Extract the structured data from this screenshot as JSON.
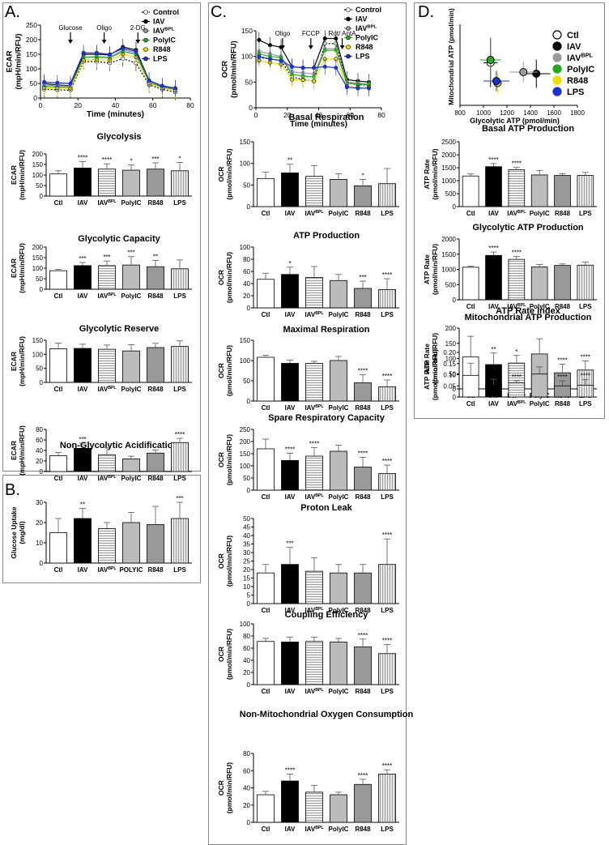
{
  "panels": {
    "A": "A.",
    "B": "B.",
    "C": "C.",
    "D": "D."
  },
  "chart_data": [
    {
      "id": "A-ts",
      "type": "line",
      "ylabel": "ECAR (mpH/min/RFU)",
      "xlabel": "Time (minutes)",
      "xlim": [
        0,
        80
      ],
      "ylim": [
        0,
        250
      ],
      "xticks": [
        0,
        20,
        40,
        60,
        80
      ],
      "yticks": [
        0,
        50,
        100,
        150,
        200,
        250
      ],
      "injections": [
        {
          "label": "Glucose",
          "x": 16
        },
        {
          "label": "Oligo",
          "x": 34
        },
        {
          "label": "2-DG",
          "x": 52
        }
      ],
      "x": [
        2,
        9,
        16,
        23,
        30,
        37,
        44,
        51,
        58,
        65,
        72
      ],
      "series": [
        {
          "name": "Control",
          "color": "#ffffff",
          "values": [
            30,
            28,
            27,
            125,
            125,
            120,
            135,
            120,
            45,
            30,
            20
          ]
        },
        {
          "name": "IAV",
          "color": "#000000",
          "values": [
            50,
            45,
            42,
            150,
            150,
            148,
            175,
            165,
            60,
            40,
            32
          ]
        },
        {
          "name": "IAV^BPL",
          "color": "#999999",
          "values": [
            45,
            42,
            40,
            140,
            142,
            140,
            165,
            155,
            55,
            38,
            30
          ]
        },
        {
          "name": "PolyIC",
          "color": "#22aa22",
          "values": [
            40,
            38,
            36,
            140,
            140,
            138,
            160,
            150,
            52,
            36,
            28
          ]
        },
        {
          "name": "R848",
          "color": "#eedd00",
          "values": [
            35,
            34,
            33,
            130,
            132,
            130,
            150,
            140,
            50,
            34,
            26
          ]
        },
        {
          "name": "LPS",
          "color": "#1a2fd4",
          "values": [
            55,
            52,
            50,
            155,
            155,
            150,
            170,
            160,
            60,
            42,
            34
          ]
        }
      ]
    },
    {
      "id": "A-gly",
      "type": "bar",
      "title": "Glycolysis",
      "ylabel": "ECAR (mpH/min/RFU)",
      "ylim": [
        0,
        200
      ],
      "yticks": [
        0,
        50,
        100,
        150,
        200
      ],
      "categories": [
        "Ctl",
        "IAV",
        "IAV^BPL",
        "PolyIC",
        "R848",
        "LPS"
      ],
      "values": [
        105,
        133,
        128,
        123,
        128,
        120
      ],
      "errors": [
        15,
        30,
        25,
        25,
        30,
        40
      ],
      "sig": [
        "",
        "****",
        "****",
        "*",
        "***",
        "*"
      ]
    },
    {
      "id": "A-gcap",
      "type": "bar",
      "title": "Glycolytic Capacity",
      "ylabel": "ECAR (mpH/min/RFU)",
      "ylim": [
        0,
        200
      ],
      "yticks": [
        0,
        50,
        100,
        150,
        200
      ],
      "categories": [
        "Ctl",
        "IAV",
        "IAV^BPL",
        "PolyIC",
        "R848",
        "LPS"
      ],
      "values": [
        88,
        112,
        112,
        115,
        107,
        97
      ],
      "errors": [
        6,
        15,
        22,
        40,
        30,
        42
      ],
      "sig": [
        "",
        "***",
        "***",
        "***",
        "**",
        ""
      ]
    },
    {
      "id": "A-gres",
      "type": "bar",
      "title": "Glycolytic Reserve",
      "ylabel": "ECAR (mpH/min/RFU)",
      "ylim": [
        0,
        150
      ],
      "yticks": [
        0,
        50,
        100,
        150
      ],
      "categories": [
        "Ctl",
        "IAV",
        "IAV^BPL",
        "PolyIC",
        "R848",
        "LPS"
      ],
      "values": [
        120,
        121,
        118,
        112,
        124,
        128
      ],
      "errors": [
        20,
        15,
        15,
        22,
        15,
        20
      ],
      "sig": [
        "",
        "",
        "",
        "",
        "",
        ""
      ]
    },
    {
      "id": "A-nga",
      "type": "bar",
      "title": "Non-Glycolytic Acidification",
      "ylabel": "ECAR (mpH/min/RFU)",
      "ylim": [
        0,
        80
      ],
      "yticks": [
        0,
        20,
        40,
        60,
        80
      ],
      "categories": [
        "Ctl",
        "IAV",
        "IAV^BPL",
        "PolyIC",
        "R848",
        "LPS"
      ],
      "values": [
        30,
        44,
        32,
        24,
        35,
        55
      ],
      "errors": [
        6,
        10,
        13,
        5,
        6,
        8
      ],
      "sig": [
        "",
        "***",
        "",
        "",
        "",
        "****"
      ]
    },
    {
      "id": "B-glu",
      "type": "bar",
      "title": "",
      "ylabel": "Glucose Uptake (mg/dl)",
      "ylim": [
        0,
        30
      ],
      "yticks": [
        0,
        10,
        20,
        30
      ],
      "categories": [
        "Ctl",
        "IAV",
        "IAV^BPL",
        "POLYIC",
        "R848",
        "LPS"
      ],
      "values": [
        15,
        22,
        17,
        20,
        19,
        22
      ],
      "errors": [
        7,
        5,
        3,
        5,
        9,
        8
      ],
      "sig": [
        "",
        "**",
        "",
        "",
        "",
        "***"
      ]
    },
    {
      "id": "C-ts",
      "type": "line",
      "ylabel": "OCR (pmol/min/RFU)",
      "xlabel": "Time (minutes)",
      "xlim": [
        0,
        80
      ],
      "ylim": [
        0,
        150
      ],
      "xticks": [
        0,
        20,
        40,
        60,
        80
      ],
      "yticks": [
        0,
        50,
        100,
        150
      ],
      "injections": [
        {
          "label": "Oligo",
          "x": 17
        },
        {
          "label": "FCCP",
          "x": 35
        },
        {
          "label": "Rot/ AntA",
          "x": 55
        }
      ],
      "x": [
        2,
        9,
        16,
        23,
        30,
        37,
        44,
        51,
        58,
        65,
        72
      ],
      "series": [
        {
          "name": "Control",
          "color": "#ffffff",
          "values": [
            98,
            95,
            92,
            60,
            55,
            52,
            125,
            125,
            48,
            45,
            44
          ]
        },
        {
          "name": "IAV",
          "color": "#000000",
          "values": [
            132,
            122,
            118,
            80,
            78,
            78,
            135,
            135,
            55,
            52,
            50
          ]
        },
        {
          "name": "IAV^BPL",
          "color": "#999999",
          "values": [
            110,
            105,
            100,
            70,
            68,
            66,
            115,
            115,
            50,
            48,
            46
          ]
        },
        {
          "name": "PolyIC",
          "color": "#22aa22",
          "values": [
            105,
            100,
            98,
            65,
            62,
            60,
            112,
            112,
            48,
            46,
            45
          ]
        },
        {
          "name": "R848",
          "color": "#eedd00",
          "values": [
            92,
            88,
            85,
            55,
            54,
            52,
            95,
            95,
            42,
            40,
            40
          ]
        },
        {
          "name": "LPS",
          "color": "#1a2fd4",
          "values": [
            100,
            95,
            92,
            80,
            78,
            78,
            80,
            78,
            40,
            38,
            38
          ]
        }
      ]
    },
    {
      "id": "C-basal",
      "type": "bar",
      "title": "Basal Respiration",
      "ylabel": "OCR (pmol/min/RFU)",
      "ylim": [
        0,
        150
      ],
      "yticks": [
        0,
        50,
        100,
        150
      ],
      "categories": [
        "Ctl",
        "IAV",
        "IAV^BPL",
        "PolyIC",
        "R848",
        "LPS"
      ],
      "values": [
        65,
        78,
        70,
        63,
        48,
        53
      ],
      "errors": [
        15,
        20,
        25,
        13,
        15,
        35
      ],
      "sig": [
        "",
        "**",
        "",
        "",
        "*",
        ""
      ]
    },
    {
      "id": "C-atp",
      "type": "bar",
      "title": "ATP Production",
      "ylabel": "OCR (pmol/min/RFU)",
      "ylim": [
        0,
        100
      ],
      "yticks": [
        0,
        20,
        40,
        60,
        80,
        100
      ],
      "categories": [
        "Ctl",
        "IAV",
        "IAV^BPL",
        "PolyIC",
        "R848",
        "LPS"
      ],
      "values": [
        47,
        55,
        50,
        45,
        32,
        30
      ],
      "errors": [
        10,
        12,
        18,
        10,
        12,
        18
      ],
      "sig": [
        "",
        "*",
        "",
        "",
        "***",
        "****"
      ]
    },
    {
      "id": "C-max",
      "type": "bar",
      "title": "Maximal Respiration",
      "ylabel": "OCR (pmol/min/RFU)",
      "ylim": [
        0,
        150
      ],
      "yticks": [
        0,
        50,
        100,
        150
      ],
      "categories": [
        "Ctl",
        "IAV",
        "IAV^BPL",
        "PolyIC",
        "R848",
        "LPS"
      ],
      "values": [
        108,
        93,
        93,
        100,
        45,
        35
      ],
      "errors": [
        5,
        8,
        5,
        10,
        20,
        17
      ],
      "sig": [
        "",
        "",
        "",
        "",
        "****",
        "****"
      ]
    },
    {
      "id": "C-spare",
      "type": "bar",
      "title": "Spare Respiratory Capacity",
      "ylabel": "OCR (pmol/min/RFU)",
      "ylim": [
        0,
        250
      ],
      "yticks": [
        0,
        50,
        100,
        150,
        200,
        250
      ],
      "categories": [
        "Ctl",
        "IAV",
        "IAV^BPL",
        "PolyIC",
        "R848",
        "LPS"
      ],
      "values": [
        170,
        122,
        140,
        160,
        95,
        68
      ],
      "errors": [
        40,
        30,
        35,
        25,
        40,
        35
      ],
      "sig": [
        "",
        "****",
        "****",
        "",
        "****",
        "****"
      ]
    },
    {
      "id": "C-leak",
      "type": "bar",
      "title": "Proton Leak",
      "ylabel": "OCR (pmol/min/RFU)",
      "ylim": [
        0,
        50
      ],
      "yticks": [
        0,
        5,
        10,
        15,
        20,
        25,
        30,
        35,
        40,
        45,
        50
      ],
      "categories": [
        "Ctl",
        "IAV",
        "IAV^BPL",
        "PolyIC",
        "R848",
        "LPS"
      ],
      "values": [
        18,
        23,
        19,
        18,
        18,
        23
      ],
      "errors": [
        5,
        10,
        8,
        5,
        5,
        15
      ],
      "sig": [
        "",
        "***",
        "",
        "",
        "",
        "****"
      ]
    },
    {
      "id": "C-coup",
      "type": "bar",
      "title": "Coupling Efficiency",
      "ylabel": "OCR (pmol/min/RFU)",
      "ylim": [
        0,
        100
      ],
      "yticks": [
        0,
        20,
        40,
        60,
        80,
        100
      ],
      "categories": [
        "Ctl",
        "IAV",
        "IAV^BPL",
        "PolyIC",
        "R848",
        "LPS"
      ],
      "values": [
        71,
        70,
        71,
        70,
        62,
        51
      ],
      "errors": [
        5,
        8,
        7,
        6,
        13,
        15
      ],
      "sig": [
        "",
        "",
        "",
        "",
        "****",
        "****"
      ]
    },
    {
      "id": "C-nmoc",
      "type": "bar",
      "title": "Non-Mitochondrial Oxygen Consumption",
      "ylabel": "OCR (pmol/min/RFU)",
      "ylim": [
        0,
        80
      ],
      "yticks": [
        0,
        20,
        40,
        60,
        80
      ],
      "categories": [
        "Ctl",
        "IAV",
        "IAV^BPL",
        "PolyIC",
        "R848",
        "LPS"
      ],
      "values": [
        32,
        48,
        35,
        32,
        44,
        56
      ],
      "errors": [
        4,
        8,
        8,
        3,
        6,
        5
      ],
      "sig": [
        "",
        "****",
        "",
        "",
        "****",
        "****"
      ]
    },
    {
      "id": "D-scatter",
      "type": "scatter",
      "xlabel": "Glycolytic ATP (pmol/min)",
      "ylabel": "Mitochondrial ATP (pmol/min)",
      "xlim": [
        800,
        1800
      ],
      "ylim": [
        0,
        200
      ],
      "xticks": [
        800,
        1000,
        1200,
        1400,
        1600,
        1800
      ],
      "series": [
        {
          "name": "Ctl",
          "color": "#ffffff",
          "x": 1060,
          "y": 105,
          "xerr": 60,
          "yerr": 60
        },
        {
          "name": "IAV",
          "color": "#000000",
          "x": 1450,
          "y": 78,
          "xerr": 120,
          "yerr": 35
        },
        {
          "name": "IAV^BPL",
          "color": "#999999",
          "x": 1340,
          "y": 82,
          "xerr": 120,
          "yerr": 25
        },
        {
          "name": "PolyIC",
          "color": "#22aa22",
          "x": 1060,
          "y": 112,
          "xerr": 90,
          "yerr": 55
        },
        {
          "name": "R848",
          "color": "#eedd00",
          "x": 1120,
          "y": 55,
          "xerr": 40,
          "yerr": 25
        },
        {
          "name": "LPS",
          "color": "#1a2fd4",
          "x": 1110,
          "y": 60,
          "xerr": 110,
          "yerr": 25
        }
      ]
    },
    {
      "id": "D-basal",
      "type": "bar",
      "title": "Basal ATP Production",
      "ylabel": "ATP Rate (pmol/min/RFU)",
      "ylim": [
        0,
        2500
      ],
      "yticks": [
        0,
        500,
        1000,
        1500,
        2000,
        2500
      ],
      "categories": [
        "Ctl",
        "IAV",
        "IAV^BPL",
        "PolyIC",
        "R848",
        "LPS"
      ],
      "values": [
        1180,
        1540,
        1420,
        1220,
        1200,
        1200
      ],
      "errors": [
        80,
        120,
        90,
        170,
        70,
        120
      ],
      "sig": [
        "",
        "****",
        "****",
        "",
        "",
        ""
      ]
    },
    {
      "id": "D-gly",
      "type": "bar",
      "title": "Glycolytic ATP Production",
      "ylabel": "ATP Rate (pmol/min/RFU)",
      "ylim": [
        0,
        2000
      ],
      "yticks": [
        0,
        500,
        1000,
        1500,
        2000
      ],
      "categories": [
        "Ctl",
        "IAV",
        "IAV^BPL",
        "PolyIC",
        "R848",
        "LPS"
      ],
      "values": [
        1070,
        1460,
        1330,
        1080,
        1130,
        1140
      ],
      "errors": [
        40,
        110,
        100,
        80,
        50,
        100
      ],
      "sig": [
        "",
        "****",
        "****",
        "",
        "",
        ""
      ]
    },
    {
      "id": "D-mito",
      "type": "bar",
      "title": "Mitochondrial ATP Production",
      "ylabel": "ATP Rate (pmol/min/RFU)",
      "ylim": [
        0,
        200
      ],
      "yticks": [
        0,
        50,
        100,
        150,
        200
      ],
      "categories": [
        "Ctl",
        "IAV",
        "IAV^BPL",
        "PolyIC",
        "R848",
        "LPS"
      ],
      "values": [
        105,
        80,
        85,
        115,
        53,
        62
      ],
      "errors": [
        68,
        38,
        25,
        50,
        28,
        30
      ],
      "sig": [
        "",
        "**",
        "*",
        "",
        "****",
        "****"
      ]
    },
    {
      "id": "D-index",
      "type": "bar",
      "title": "ATP Rate Index",
      "ylabel": "ATP Rate (pmol/min/RFU)",
      "ylim": [
        0,
        0.2
      ],
      "yticks": [
        0,
        0.05,
        0.1,
        0.15,
        0.2
      ],
      "categories": [
        "Ctl",
        "IAV",
        "IAV^BPL",
        "PolyIC",
        "R848",
        "LPS"
      ],
      "values": [
        0.097,
        0.055,
        0.063,
        0.103,
        0.05,
        0.053
      ],
      "errors": [
        0.055,
        0.025,
        0.01,
        0.032,
        0.022,
        0.025
      ],
      "sig": [
        "",
        "****",
        "****",
        "",
        "****",
        "****"
      ]
    }
  ]
}
